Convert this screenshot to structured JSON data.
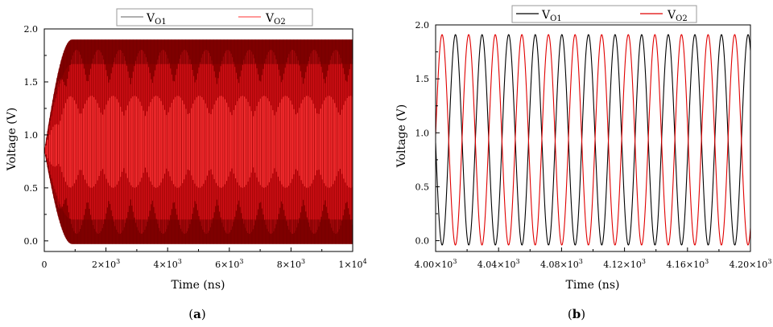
{
  "chart_data": [
    {
      "panel_label": "(a)",
      "type": "line",
      "style": "dense-oscillation-envelope",
      "xlabel": "Time (ns)",
      "ylabel": "Voltage (V)",
      "xlim": [
        0,
        10000
      ],
      "ylim": [
        -0.1,
        2.0
      ],
      "xticks": [
        {
          "value": 0,
          "mantissa": "0",
          "exp": ""
        },
        {
          "value": 2000,
          "mantissa": "2×10",
          "exp": "3"
        },
        {
          "value": 4000,
          "mantissa": "4×10",
          "exp": "3"
        },
        {
          "value": 6000,
          "mantissa": "6×10",
          "exp": "3"
        },
        {
          "value": 8000,
          "mantissa": "8×10",
          "exp": "3"
        },
        {
          "value": 10000,
          "mantissa": "1×10",
          "exp": "4"
        }
      ],
      "yticks": [
        "0.0",
        "0.5",
        "1.0",
        "1.5",
        "2.0"
      ],
      "ytick_values": [
        0,
        0.5,
        1.0,
        1.5,
        2.0
      ],
      "legend_position": "top",
      "series": [
        {
          "name": "V",
          "sub": "O1",
          "color": "#808080",
          "fill_color": "#8b0000"
        },
        {
          "name": "V",
          "sub": "O2",
          "color": "#ff5c5c",
          "fill_color": "#e8141c"
        }
      ],
      "envelope": {
        "initial_value": 0.85,
        "settle_time_ns": 900,
        "min": -0.03,
        "max": 1.9
      }
    },
    {
      "panel_label": "(b)",
      "type": "line",
      "xlabel": "Time (ns)",
      "ylabel": "Voltage (V)",
      "xlim": [
        4000,
        4200
      ],
      "ylim": [
        -0.1,
        2.0
      ],
      "xticks": [
        {
          "value": 4000,
          "mantissa": "4.00×10",
          "exp": "3"
        },
        {
          "value": 4040,
          "mantissa": "4.04×10",
          "exp": "3"
        },
        {
          "value": 4080,
          "mantissa": "4.08×10",
          "exp": "3"
        },
        {
          "value": 4120,
          "mantissa": "4.12×10",
          "exp": "3"
        },
        {
          "value": 4160,
          "mantissa": "4.16×10",
          "exp": "3"
        },
        {
          "value": 4200,
          "mantissa": "4.20×10",
          "exp": "3"
        }
      ],
      "yticks": [
        "0.0",
        "0.5",
        "1.0",
        "1.5",
        "2.0"
      ],
      "ytick_values": [
        0,
        0.5,
        1.0,
        1.5,
        2.0
      ],
      "legend_position": "top",
      "series": [
        {
          "name": "V",
          "sub": "O1",
          "color": "#000000",
          "period_ns": 16.9,
          "peak_time_ns": 4029.5,
          "min": -0.04,
          "max": 1.91
        },
        {
          "name": "V",
          "sub": "O2",
          "color": "#e00000",
          "period_ns": 16.9,
          "peak_time_ns": 4021.0,
          "min": -0.04,
          "max": 1.91
        }
      ]
    }
  ]
}
